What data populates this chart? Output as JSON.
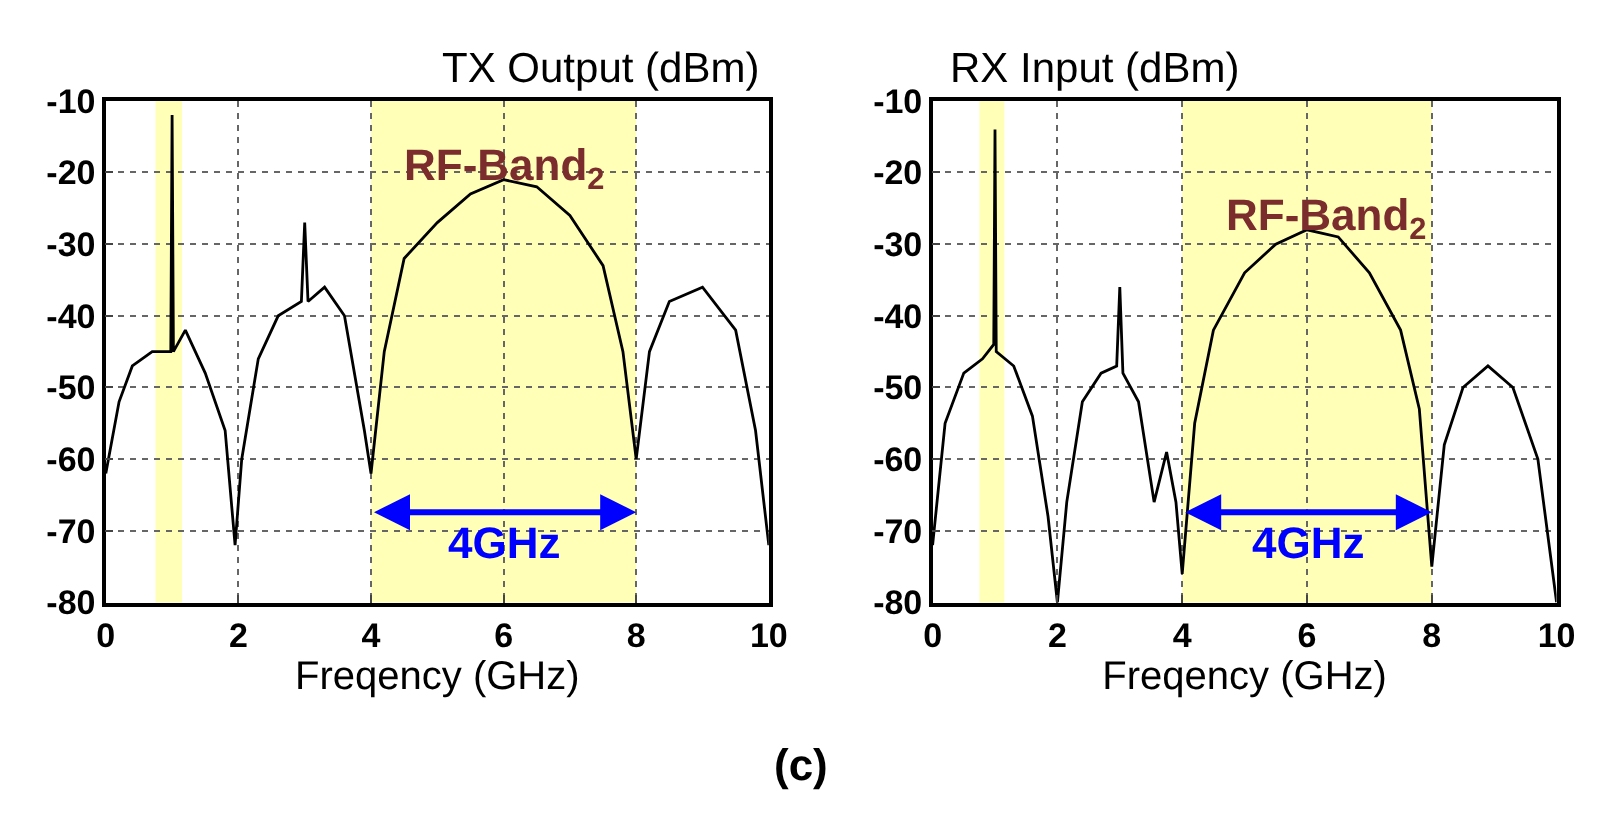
{
  "chart_data": [
    {
      "type": "line",
      "title": "TX Output (dBm)",
      "xlabel": "Freqency (GHz)",
      "xlim": [
        0,
        10
      ],
      "xticks": [
        0,
        2,
        4,
        6,
        8,
        10
      ],
      "ylim": [
        -80,
        -10
      ],
      "yticks": [
        -10,
        -20,
        -30,
        -40,
        -50,
        -60,
        -70,
        -80
      ],
      "grid": true,
      "series": [
        {
          "color": "#000000",
          "x": [
            0,
            0.2,
            0.4,
            0.7,
            0.98,
            1.0,
            1.02,
            1.2,
            1.5,
            1.8,
            1.95,
            2.05,
            2.3,
            2.6,
            2.95,
            3.0,
            3.05,
            3.3,
            3.6,
            3.9,
            4.0,
            4.2,
            4.5,
            5.0,
            5.5,
            6.0,
            6.5,
            7.0,
            7.5,
            7.8,
            8.0,
            8.2,
            8.5,
            9.0,
            9.5,
            9.8,
            10
          ],
          "values": [
            -62,
            -52,
            -47,
            -45,
            -45,
            -12,
            -45,
            -42,
            -48,
            -56,
            -72,
            -60,
            -46,
            -40,
            -38,
            -27,
            -38,
            -36,
            -40,
            -56,
            -62,
            -45,
            -32,
            -27,
            -23,
            -21,
            -22,
            -26,
            -33,
            -45,
            -60,
            -45,
            -38,
            -36,
            -42,
            -56,
            -72
          ]
        }
      ],
      "bands": [
        {
          "axis": "x",
          "from": 0.75,
          "to": 1.15,
          "color": "#ffff99"
        },
        {
          "axis": "x",
          "from": 4,
          "to": 8,
          "color": "#ffff99"
        }
      ],
      "annotations": [
        "RF-Band$_{2}$",
        "4GHz"
      ]
    },
    {
      "type": "line",
      "title": "RX Input (dBm)",
      "xlabel": "Freqency (GHz)",
      "xlim": [
        0,
        10
      ],
      "xticks": [
        0,
        2,
        4,
        6,
        8,
        10
      ],
      "ylim": [
        -80,
        -10
      ],
      "yticks": [
        -10,
        -20,
        -30,
        -40,
        -50,
        -60,
        -70,
        -80
      ],
      "grid": true,
      "series": [
        {
          "color": "#000000",
          "x": [
            0,
            0.2,
            0.5,
            0.8,
            0.98,
            1.0,
            1.02,
            1.3,
            1.6,
            1.85,
            2.0,
            2.15,
            2.4,
            2.7,
            2.95,
            3.0,
            3.05,
            3.3,
            3.55,
            3.75,
            3.9,
            4.0,
            4.2,
            4.5,
            5.0,
            5.5,
            6.0,
            6.5,
            7.0,
            7.5,
            7.8,
            8.0,
            8.2,
            8.5,
            8.9,
            9.3,
            9.7,
            10
          ],
          "values": [
            -72,
            -55,
            -48,
            -46,
            -44,
            -14,
            -45,
            -47,
            -54,
            -68,
            -80,
            -66,
            -52,
            -48,
            -47,
            -36,
            -48,
            -52,
            -66,
            -59,
            -66,
            -76,
            -55,
            -42,
            -34,
            -30,
            -28,
            -29,
            -34,
            -42,
            -53,
            -75,
            -58,
            -50,
            -47,
            -50,
            -60,
            -80
          ]
        }
      ],
      "bands": [
        {
          "axis": "x",
          "from": 0.75,
          "to": 1.15,
          "color": "#ffff99"
        },
        {
          "axis": "x",
          "from": 4,
          "to": 8,
          "color": "#ffff99"
        }
      ],
      "annotations": [
        "RF-Band$_{2}$",
        "4GHz",
        "(c)"
      ]
    }
  ]
}
